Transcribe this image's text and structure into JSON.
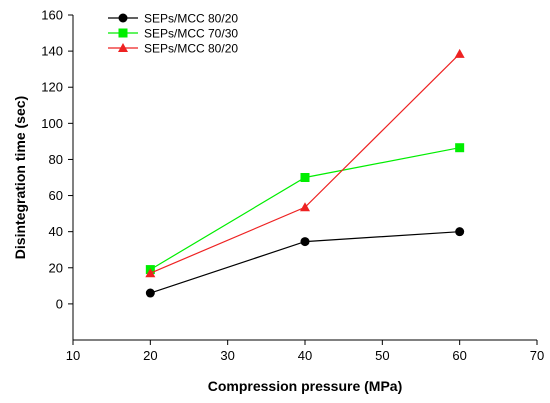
{
  "chart_data": {
    "type": "line",
    "title": "",
    "xlabel": "Compression pressure (MPa)",
    "ylabel": "Disintegration time (sec)",
    "xlim": [
      10,
      70
    ],
    "ylim": [
      -20,
      160
    ],
    "xticks": [
      10,
      20,
      30,
      40,
      50,
      60,
      70
    ],
    "yticks": [
      0,
      20,
      40,
      60,
      80,
      100,
      120,
      140,
      160
    ],
    "grid": false,
    "legend_position": "top-left",
    "series": [
      {
        "name": "SEPs/MCC 80/20",
        "color": "#000000",
        "marker": "circle",
        "x": [
          20,
          40,
          60
        ],
        "y": [
          6,
          34.5,
          40
        ]
      },
      {
        "name": "SEPs/MCC 70/30",
        "color": "#00ee00",
        "marker": "square",
        "x": [
          20,
          40,
          60
        ],
        "y": [
          19,
          70,
          86.5
        ]
      },
      {
        "name": "SEPs/MCC 80/20",
        "color": "#ee2222",
        "marker": "triangle",
        "x": [
          20,
          40,
          60
        ],
        "y": [
          17,
          53.5,
          138.5
        ]
      }
    ]
  }
}
